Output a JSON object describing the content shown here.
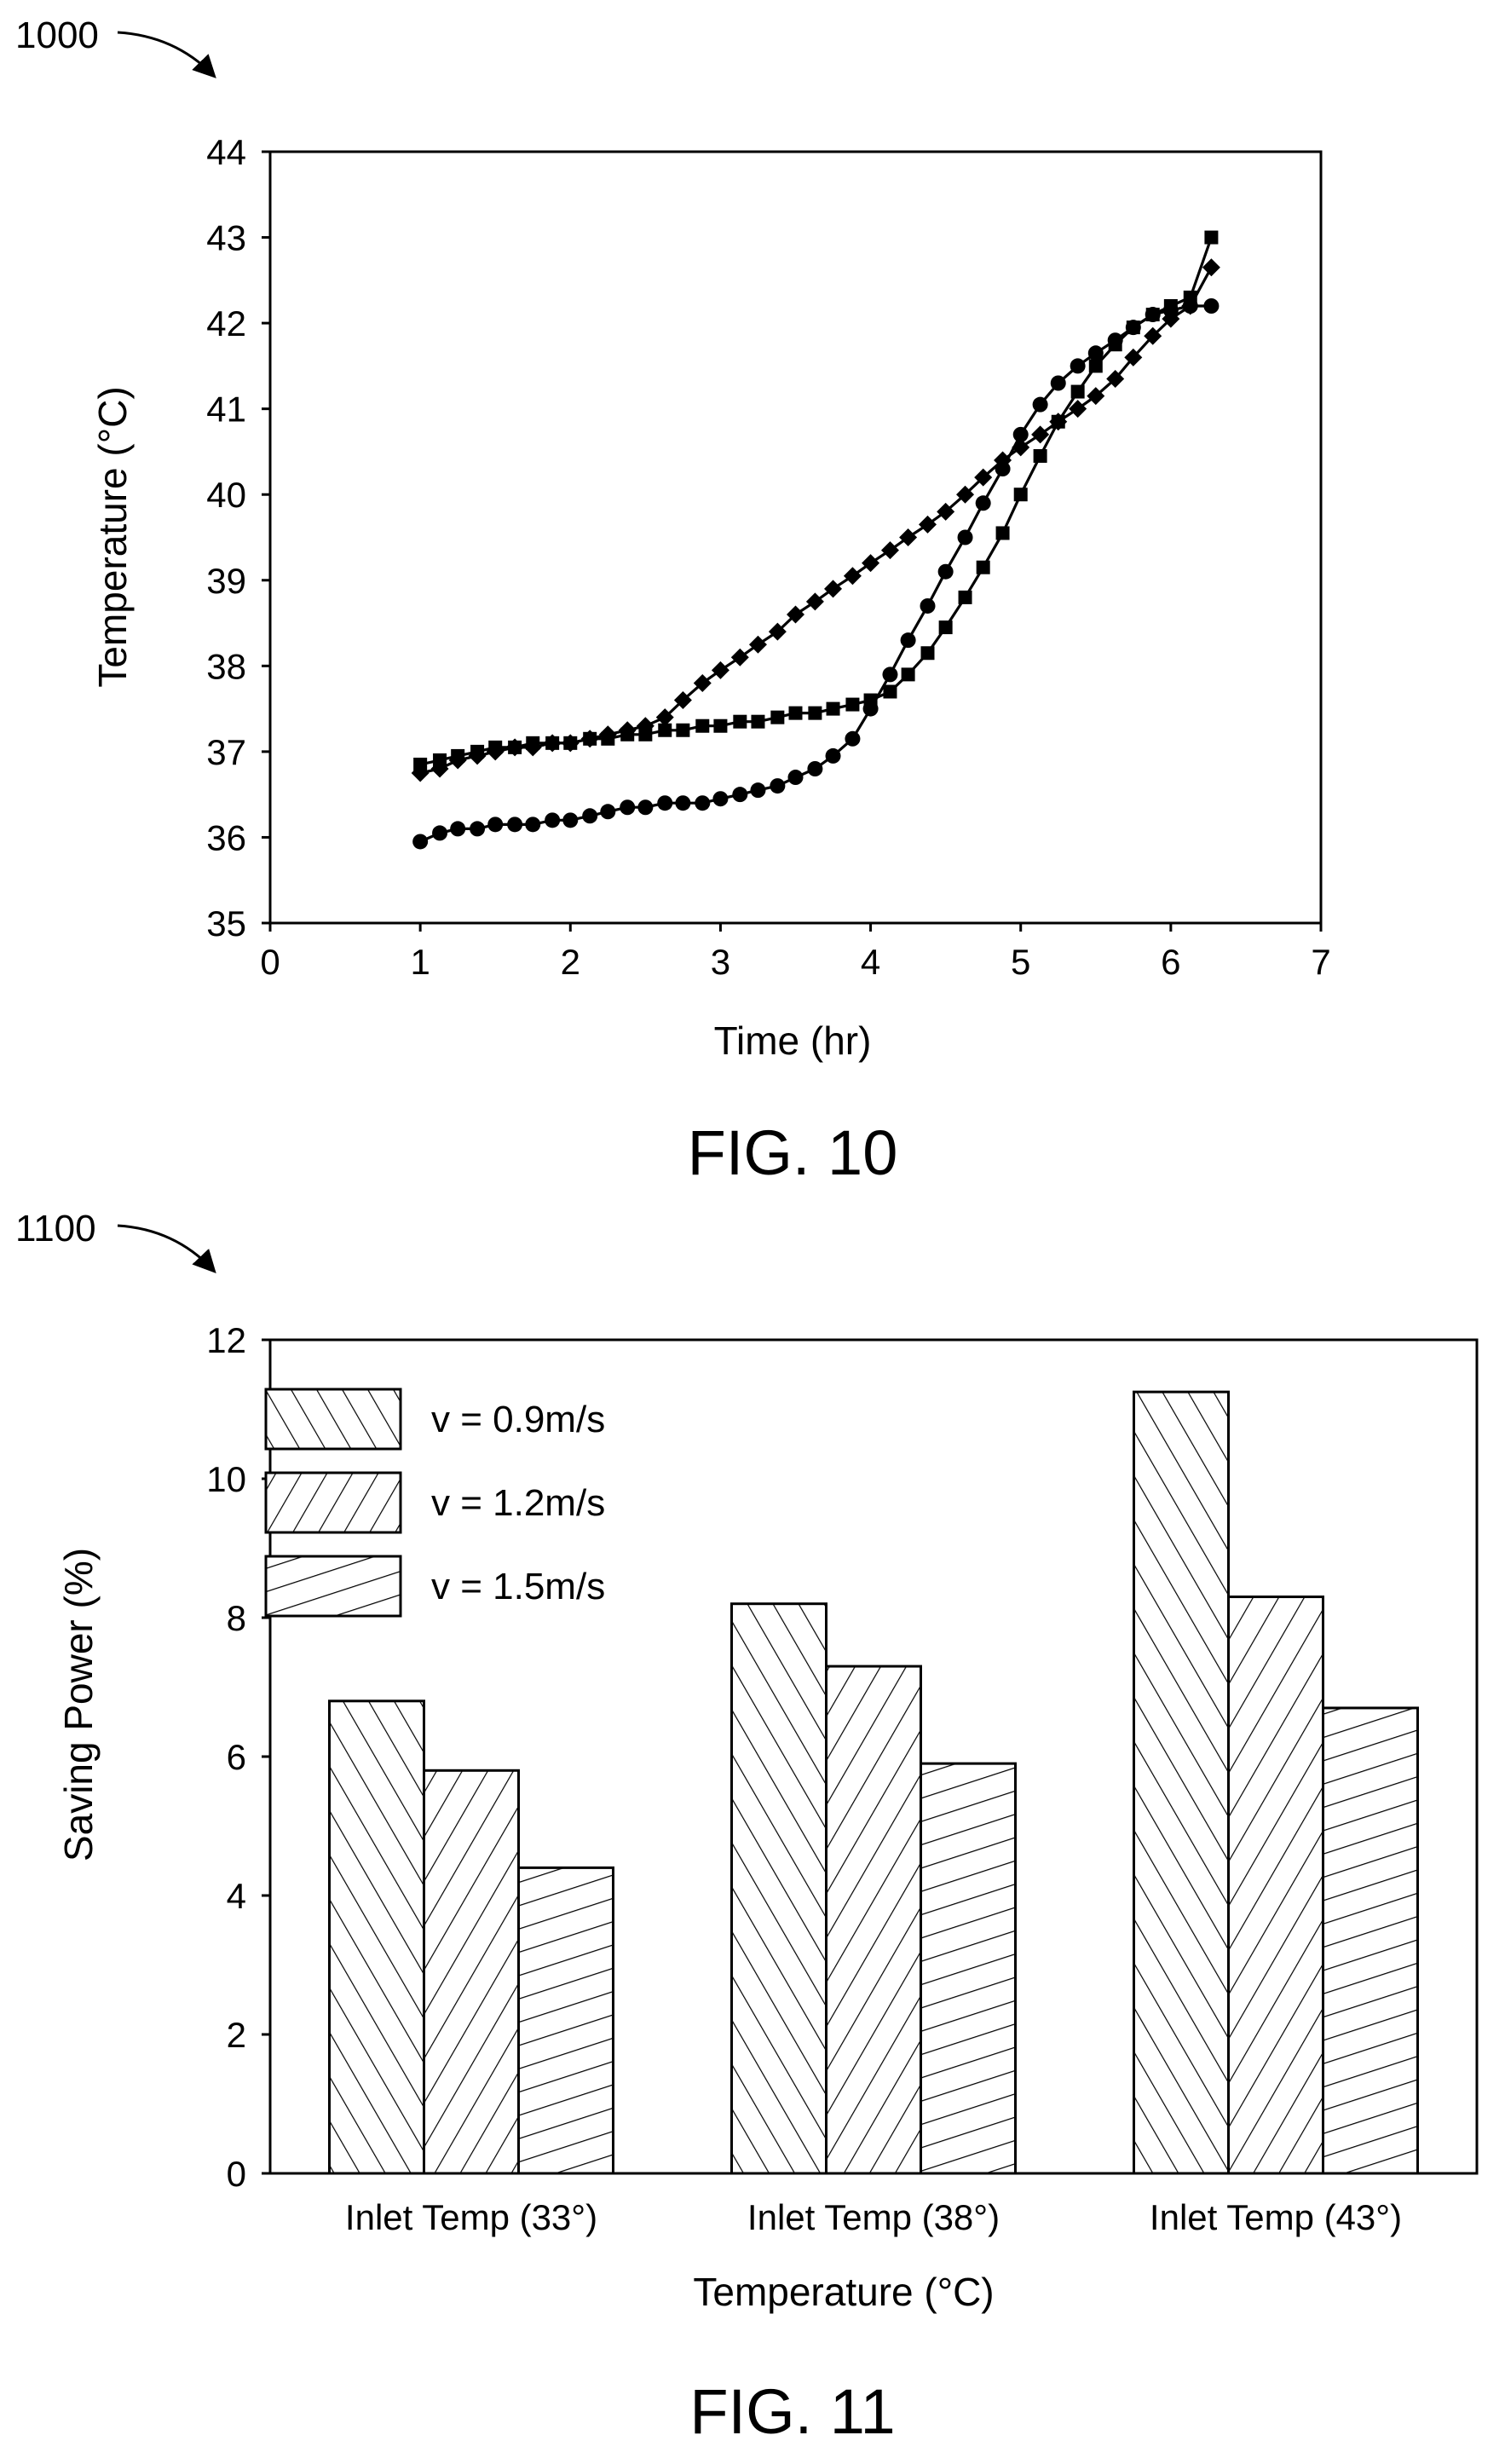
{
  "ref_numbers": {
    "fig10": "1000",
    "fig11": "1100"
  },
  "captions": {
    "fig10": "FIG. 10",
    "fig11": "FIG. 11"
  },
  "chart_data": [
    {
      "type": "line",
      "xlabel": "Time (hr)",
      "ylabel": "Temperature (°C)",
      "xlim": [
        0,
        7
      ],
      "ylim": [
        35,
        44
      ],
      "x_ticks": [
        "0",
        "1",
        "2",
        "3",
        "4",
        "5",
        "6",
        "7"
      ],
      "y_ticks": [
        "35",
        "36",
        "37",
        "38",
        "39",
        "40",
        "41",
        "42",
        "43",
        "44"
      ],
      "grid": false,
      "legend": "none",
      "series": [
        {
          "marker": "diamond",
          "x": [
            1.0,
            1.13,
            1.25,
            1.38,
            1.5,
            1.63,
            1.75,
            1.88,
            2.0,
            2.13,
            2.25,
            2.38,
            2.5,
            2.63,
            2.75,
            2.88,
            3.0,
            3.13,
            3.25,
            3.38,
            3.5,
            3.63,
            3.75,
            3.88,
            4.0,
            4.13,
            4.25,
            4.38,
            4.5,
            4.63,
            4.75,
            4.88,
            5.0,
            5.13,
            5.25,
            5.38,
            5.5,
            5.63,
            5.75,
            5.88,
            6.0,
            6.13,
            6.27
          ],
          "y": [
            36.75,
            36.8,
            36.9,
            36.95,
            37.0,
            37.05,
            37.05,
            37.1,
            37.1,
            37.15,
            37.2,
            37.25,
            37.3,
            37.4,
            37.6,
            37.8,
            37.95,
            38.1,
            38.25,
            38.4,
            38.6,
            38.75,
            38.9,
            39.05,
            39.2,
            39.35,
            39.5,
            39.65,
            39.8,
            40.0,
            40.2,
            40.4,
            40.55,
            40.7,
            40.85,
            41.0,
            41.15,
            41.35,
            41.6,
            41.85,
            42.05,
            42.2,
            42.65
          ]
        },
        {
          "marker": "square",
          "x": [
            1.0,
            1.13,
            1.25,
            1.38,
            1.5,
            1.63,
            1.75,
            1.88,
            2.0,
            2.13,
            2.25,
            2.38,
            2.5,
            2.63,
            2.75,
            2.88,
            3.0,
            3.13,
            3.25,
            3.38,
            3.5,
            3.63,
            3.75,
            3.88,
            4.0,
            4.13,
            4.25,
            4.38,
            4.5,
            4.63,
            4.75,
            4.88,
            5.0,
            5.13,
            5.25,
            5.38,
            5.5,
            5.63,
            5.75,
            5.88,
            6.0,
            6.13,
            6.27
          ],
          "y": [
            36.85,
            36.9,
            36.95,
            37.0,
            37.05,
            37.05,
            37.1,
            37.1,
            37.1,
            37.15,
            37.15,
            37.2,
            37.2,
            37.25,
            37.25,
            37.3,
            37.3,
            37.35,
            37.35,
            37.4,
            37.45,
            37.45,
            37.5,
            37.55,
            37.6,
            37.7,
            37.9,
            38.15,
            38.45,
            38.8,
            39.15,
            39.55,
            40.0,
            40.45,
            40.85,
            41.2,
            41.5,
            41.75,
            41.95,
            42.1,
            42.2,
            42.3,
            43.0
          ]
        },
        {
          "marker": "circle",
          "x": [
            1.0,
            1.13,
            1.25,
            1.38,
            1.5,
            1.63,
            1.75,
            1.88,
            2.0,
            2.13,
            2.25,
            2.38,
            2.5,
            2.63,
            2.75,
            2.88,
            3.0,
            3.13,
            3.25,
            3.38,
            3.5,
            3.63,
            3.75,
            3.88,
            4.0,
            4.13,
            4.25,
            4.38,
            4.5,
            4.63,
            4.75,
            4.88,
            5.0,
            5.13,
            5.25,
            5.38,
            5.5,
            5.63,
            5.75,
            5.88,
            6.0,
            6.13,
            6.27
          ],
          "y": [
            35.95,
            36.05,
            36.1,
            36.1,
            36.15,
            36.15,
            36.15,
            36.2,
            36.2,
            36.25,
            36.3,
            36.35,
            36.35,
            36.4,
            36.4,
            36.4,
            36.45,
            36.5,
            36.55,
            36.6,
            36.7,
            36.8,
            36.95,
            37.15,
            37.5,
            37.9,
            38.3,
            38.7,
            39.1,
            39.5,
            39.9,
            40.3,
            40.7,
            41.05,
            41.3,
            41.5,
            41.65,
            41.8,
            41.95,
            42.1,
            42.15,
            42.2,
            42.2
          ]
        }
      ]
    },
    {
      "type": "bar",
      "xlabel": "Temperature (°C)",
      "ylabel": "Saving Power (%)",
      "ylim": [
        0,
        12
      ],
      "y_ticks": [
        "0",
        "2",
        "4",
        "6",
        "8",
        "10",
        "12"
      ],
      "categories": [
        "Inlet Temp (33°)",
        "Inlet Temp (38°)",
        "Inlet Temp (43°)"
      ],
      "grid": false,
      "legend": "top-left",
      "series": [
        {
          "name": "v = 0.9m/s",
          "hatch": "forward-diagonal",
          "values": [
            6.8,
            8.2,
            11.25
          ]
        },
        {
          "name": "v = 1.2m/s",
          "hatch": "back-diagonal",
          "values": [
            5.8,
            7.3,
            8.3
          ]
        },
        {
          "name": "v = 1.5m/s",
          "hatch": "shallow-diagonal",
          "values": [
            4.4,
            5.9,
            6.7
          ]
        }
      ]
    }
  ]
}
